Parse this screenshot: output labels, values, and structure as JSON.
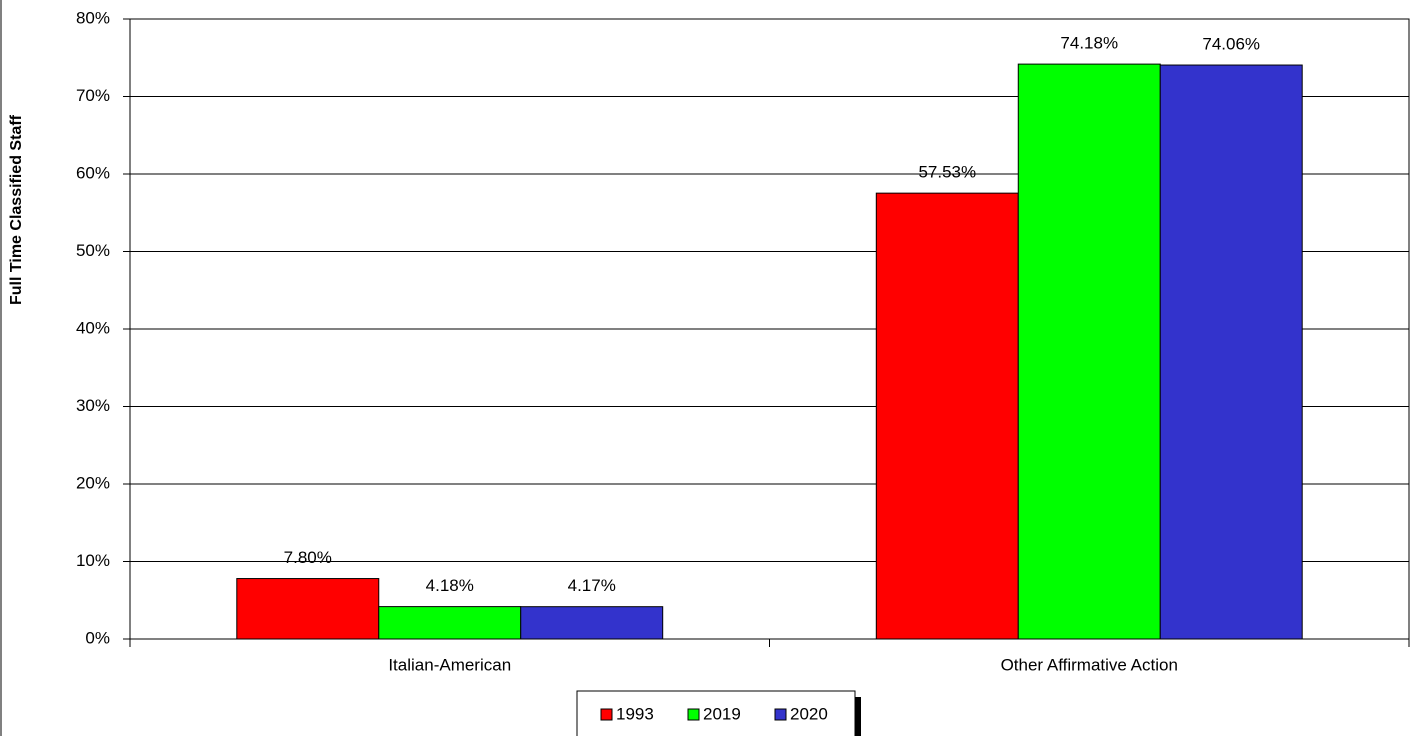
{
  "chart_data": {
    "type": "bar",
    "y_label": "Full Time Classified Staff",
    "categories": [
      "Italian-American",
      "Other Affirmative Action"
    ],
    "series": [
      {
        "name": "1993",
        "color": "#ff0000",
        "values": [
          7.8,
          57.53
        ],
        "value_labels": [
          "7.80%",
          "57.53%"
        ]
      },
      {
        "name": "2019",
        "color": "#00ff00",
        "values": [
          4.18,
          74.18
        ],
        "value_labels": [
          "4.18%",
          "74.18%"
        ]
      },
      {
        "name": "2020",
        "color": "#3333cc",
        "values": [
          4.17,
          74.06
        ],
        "value_labels": [
          "4.17%",
          "74.06%"
        ]
      }
    ],
    "ylim": [
      0,
      80
    ],
    "yticks": [
      {
        "value": 0,
        "label": "0%"
      },
      {
        "value": 10,
        "label": "10%"
      },
      {
        "value": 20,
        "label": "20%"
      },
      {
        "value": 30,
        "label": "30%"
      },
      {
        "value": 40,
        "label": "40%"
      },
      {
        "value": 50,
        "label": "50%"
      },
      {
        "value": 60,
        "label": "60%"
      },
      {
        "value": 70,
        "label": "70%"
      },
      {
        "value": 80,
        "label": "80%"
      }
    ],
    "grid": true,
    "legend": "bottom"
  }
}
